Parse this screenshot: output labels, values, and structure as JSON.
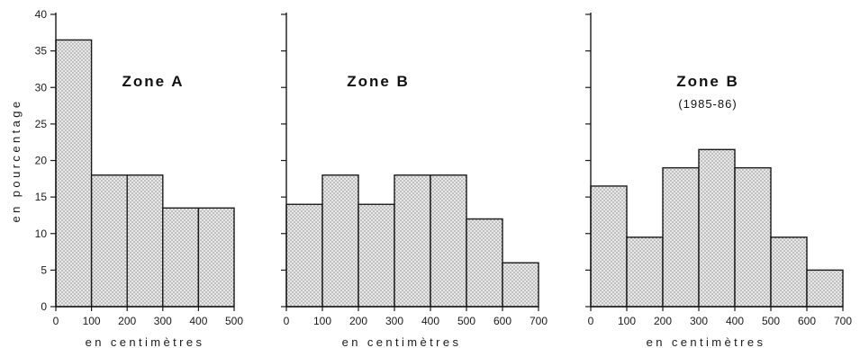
{
  "colors": {
    "bar_fill": "#e8e8e8",
    "bar_dots": "#6a6a6a",
    "bar_stroke": "#1a1a1a",
    "axis": "#1a1a1a",
    "text": "#111111"
  },
  "chart_data": [
    {
      "type": "bar",
      "title": "Zone A",
      "subtitle": "",
      "ylabel": "en pourcentage",
      "xlabel": "en centimètres",
      "ylim": [
        0,
        40
      ],
      "xlim": [
        0,
        500
      ],
      "y_ticks": [
        0,
        5,
        10,
        15,
        20,
        25,
        30,
        35,
        40
      ],
      "y_tick_labels": [
        "0",
        "5",
        "10",
        "15",
        "20",
        "25",
        "30",
        "35",
        "40"
      ],
      "x_ticks": [
        0,
        100,
        200,
        300,
        400,
        500
      ],
      "x_tick_labels": [
        "0",
        "100",
        "200",
        "300",
        "400",
        "500"
      ],
      "bins": [
        {
          "from": 0,
          "to": 100,
          "value": 36.5
        },
        {
          "from": 100,
          "to": 200,
          "value": 18
        },
        {
          "from": 200,
          "to": 300,
          "value": 18
        },
        {
          "from": 300,
          "to": 400,
          "value": 13.5
        },
        {
          "from": 400,
          "to": 500,
          "value": 13.5
        }
      ]
    },
    {
      "type": "bar",
      "title": "Zone B",
      "subtitle": "",
      "ylabel": "",
      "xlabel": "en centimètres",
      "ylim": [
        0,
        40
      ],
      "xlim": [
        0,
        700
      ],
      "y_ticks": [
        0,
        5,
        10,
        15,
        20,
        25,
        30,
        35,
        40
      ],
      "y_tick_labels": [],
      "x_ticks": [
        0,
        100,
        200,
        300,
        400,
        500,
        600,
        700
      ],
      "x_tick_labels": [
        "0",
        "100",
        "200",
        "300",
        "400",
        "500",
        "600",
        "700"
      ],
      "bins": [
        {
          "from": 0,
          "to": 100,
          "value": 14
        },
        {
          "from": 100,
          "to": 200,
          "value": 18
        },
        {
          "from": 200,
          "to": 300,
          "value": 14
        },
        {
          "from": 300,
          "to": 400,
          "value": 18
        },
        {
          "from": 400,
          "to": 500,
          "value": 18
        },
        {
          "from": 500,
          "to": 600,
          "value": 12
        },
        {
          "from": 600,
          "to": 700,
          "value": 6
        }
      ]
    },
    {
      "type": "bar",
      "title": "Zone B",
      "subtitle": "(1985-86)",
      "ylabel": "",
      "xlabel": "en centimètres",
      "ylim": [
        0,
        40
      ],
      "xlim": [
        0,
        700
      ],
      "y_ticks": [
        0,
        5,
        10,
        15,
        20,
        25,
        30,
        35,
        40
      ],
      "y_tick_labels": [],
      "x_ticks": [
        0,
        100,
        200,
        300,
        400,
        500,
        600,
        700
      ],
      "x_tick_labels": [
        "0",
        "100",
        "200",
        "300",
        "400",
        "500",
        "600",
        "700"
      ],
      "bins": [
        {
          "from": 0,
          "to": 100,
          "value": 16.5
        },
        {
          "from": 100,
          "to": 200,
          "value": 9.5
        },
        {
          "from": 200,
          "to": 300,
          "value": 19
        },
        {
          "from": 300,
          "to": 400,
          "value": 21.5
        },
        {
          "from": 400,
          "to": 500,
          "value": 19
        },
        {
          "from": 500,
          "to": 600,
          "value": 9.5
        },
        {
          "from": 600,
          "to": 700,
          "value": 5
        }
      ]
    }
  ]
}
